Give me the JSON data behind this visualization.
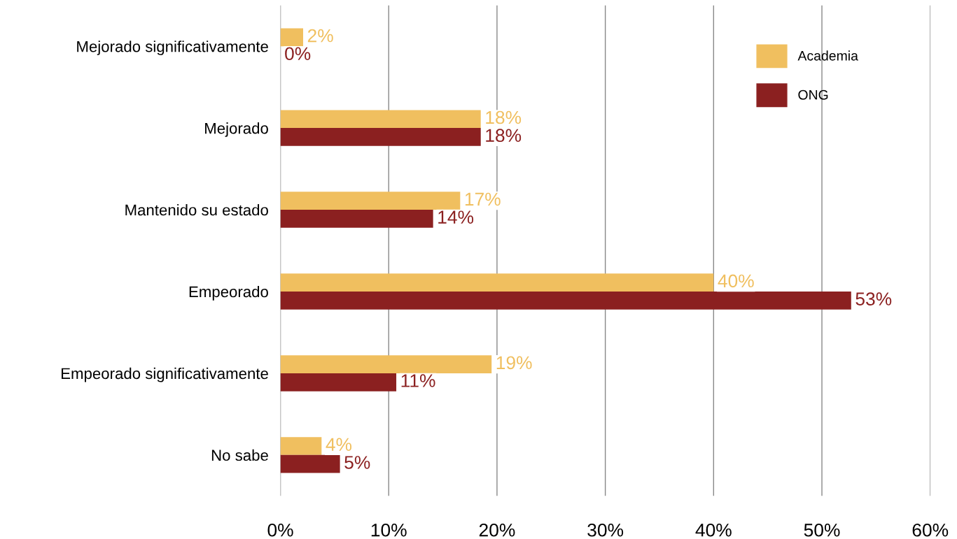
{
  "chart_data": {
    "type": "bar",
    "orientation": "horizontal",
    "categories": [
      "Mejorado significativamente",
      "Mejorado",
      "Mantenido su estado",
      "Empeorado",
      "Empeorado significativamente",
      "No sabe"
    ],
    "series": [
      {
        "name": "Academia",
        "color": "#f0bf5f",
        "values": [
          2.1,
          18.5,
          16.6,
          40,
          19.5,
          3.8
        ],
        "value_labels": [
          "2%",
          "18%",
          "17%",
          "40%",
          "19%",
          "4%"
        ]
      },
      {
        "name": "ONG",
        "color": "#8b2020",
        "values": [
          0,
          18.5,
          14.1,
          52.7,
          10.7,
          5.5
        ],
        "value_labels": [
          "0%",
          "18%",
          "14%",
          "53%",
          "11%",
          "5%"
        ]
      }
    ],
    "xlim": [
      0,
      60
    ],
    "xticks": [
      {
        "value": 0,
        "label": "0%"
      },
      {
        "value": 10,
        "label": "10%"
      },
      {
        "value": 20,
        "label": "20%"
      },
      {
        "value": 30,
        "label": "30%"
      },
      {
        "value": 40,
        "label": "40%"
      },
      {
        "value": 50,
        "label": "50%"
      },
      {
        "value": 60,
        "label": "60%"
      }
    ],
    "grid": "x",
    "legend": "top right"
  }
}
